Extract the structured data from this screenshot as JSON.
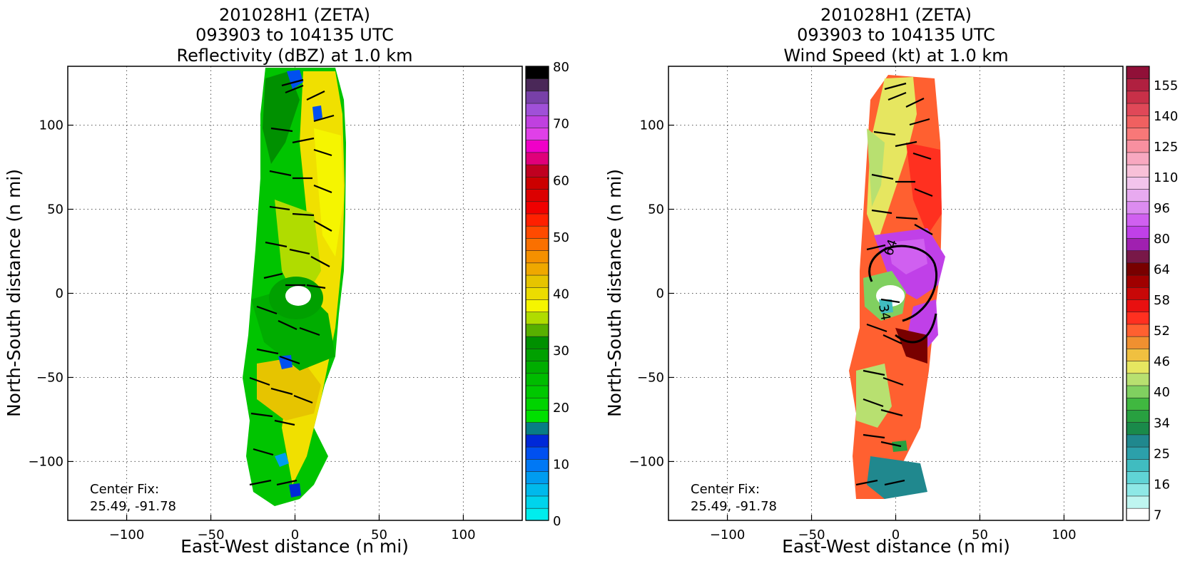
{
  "panels": [
    {
      "title_lines": [
        "201028H1 (ZETA)",
        "093903 to 104135 UTC",
        "Reflectivity (dBZ) at 1.0 km"
      ],
      "xlabel": "East-West distance (n mi)",
      "ylabel": "North-South distance (n mi)",
      "center_fix_label": "Center Fix:",
      "center_fix_value": "25.49, -91.78",
      "colorbar": {
        "tick_labels": [
          "0",
          "10",
          "20",
          "30",
          "40",
          "50",
          "60",
          "70",
          "80"
        ],
        "colors": [
          "#00eded",
          "#00d4ec",
          "#00b9ec",
          "#009cf0",
          "#0078f5",
          "#0050f0",
          "#0028d8",
          "#087d86",
          "#00e000",
          "#00d400",
          "#00c800",
          "#00bc00",
          "#00ad00",
          "#00a000",
          "#009000",
          "#58b000",
          "#b0dc00",
          "#f5f500",
          "#ecdc00",
          "#e6c400",
          "#efa800",
          "#f59000",
          "#fa7000",
          "#ff4a00",
          "#ff2000",
          "#f00000",
          "#dc0000",
          "#cc0000",
          "#c00020",
          "#e0007a",
          "#f000c8",
          "#e040e8",
          "#c040e0",
          "#a050d8",
          "#7840a8",
          "#4a2858",
          "#000000"
        ]
      }
    },
    {
      "title_lines": [
        "201028H1 (ZETA)",
        "093903 to 104135 UTC",
        "Wind Speed (kt) at 1.0 km"
      ],
      "xlabel": "East-West distance (n mi)",
      "ylabel": "North-South distance (n mi)",
      "center_fix_label": "Center Fix:",
      "center_fix_value": "25.49, -91.78",
      "contour_labels": [
        "64",
        "34"
      ],
      "colorbar": {
        "tick_labels": [
          "7",
          "16",
          "25",
          "34",
          "40",
          "46",
          "52",
          "58",
          "64",
          "80",
          "96",
          "110",
          "125",
          "140",
          "155"
        ],
        "colors": [
          "#ffffff",
          "#bff5f0",
          "#8ee8e6",
          "#60d4d6",
          "#40bcc0",
          "#2ca0aa",
          "#20888e",
          "#1a8a4a",
          "#28a040",
          "#40b840",
          "#80d060",
          "#b8e070",
          "#e6e660",
          "#f0c040",
          "#f09030",
          "#ff6030",
          "#ff3020",
          "#e81010",
          "#c80808",
          "#a00000",
          "#780000",
          "#781848",
          "#a020b0",
          "#c040e8",
          "#d060f0",
          "#dc8cf0",
          "#e8aaf0",
          "#f2c4ec",
          "#f8c0d8",
          "#f8a8c0",
          "#f890a0",
          "#f87878",
          "#f06060",
          "#e04858",
          "#c83048",
          "#b02040",
          "#901038"
        ]
      }
    }
  ],
  "chart_data": [
    {
      "type": "heatmap",
      "variable": "Reflectivity (dBZ)",
      "xlim": [
        -135,
        135
      ],
      "ylim": [
        -135,
        135
      ],
      "xticks": [
        -100,
        -50,
        0,
        50,
        100
      ],
      "yticks": [
        -100,
        -50,
        0,
        50,
        100
      ],
      "grid": true,
      "colorbar_range": [
        0,
        80
      ],
      "colorbar_ticks": [
        0,
        10,
        20,
        30,
        40,
        50,
        60,
        70,
        80
      ],
      "center_fix": [
        25.49,
        -91.78
      ]
    },
    {
      "type": "heatmap",
      "variable": "Wind Speed (kt)",
      "xlim": [
        -135,
        135
      ],
      "ylim": [
        -135,
        135
      ],
      "xticks": [
        -100,
        -50,
        0,
        50,
        100
      ],
      "yticks": [
        -100,
        -50,
        0,
        50,
        100
      ],
      "grid": true,
      "colorbar_ticks": [
        7,
        16,
        25,
        34,
        40,
        46,
        52,
        58,
        64,
        80,
        96,
        110,
        125,
        140,
        155
      ],
      "contours": [
        34,
        64
      ],
      "center_fix": [
        25.49,
        -91.78
      ]
    }
  ]
}
